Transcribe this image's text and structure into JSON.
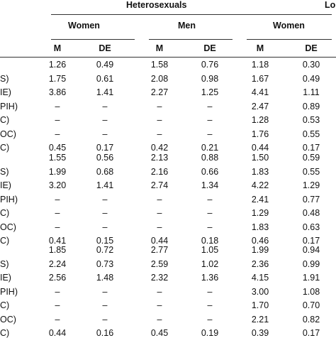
{
  "table": {
    "group_headers": [
      "Heterosexuals",
      "Lo"
    ],
    "sub_headers": [
      "Women",
      "Men",
      "Women"
    ],
    "col_headers": [
      "M",
      "DE",
      "M",
      "DE",
      "M",
      "DE"
    ],
    "sections": [
      {
        "rows": [
          {
            "label": "",
            "values": [
              "1.26",
              "0.49",
              "1.58",
              "0.76",
              "1.18",
              "0.30"
            ]
          },
          {
            "label": "S)",
            "values": [
              "1.75",
              "0.61",
              "2.08",
              "0.98",
              "1.67",
              "0.49"
            ]
          },
          {
            "label": "IE)",
            "values": [
              "3.86",
              "1.41",
              "2.27",
              "1.25",
              "4.41",
              "1.11"
            ]
          },
          {
            "label": "PIH)",
            "values": [
              "–",
              "–",
              "–",
              "–",
              "2.47",
              "0.89"
            ]
          },
          {
            "label": "C)",
            "values": [
              "–",
              "–",
              "–",
              "–",
              "1.28",
              "0.53"
            ]
          },
          {
            "label": "OC)",
            "values": [
              "–",
              "–",
              "–",
              "–",
              "1.76",
              "0.55"
            ]
          },
          {
            "label": "C)",
            "values": [
              "0.45",
              "0.17",
              "0.42",
              "0.21",
              "0.44",
              "0.17"
            ]
          }
        ]
      },
      {
        "rows": [
          {
            "label": "",
            "values": [
              "1.55",
              "0.56",
              "2.13",
              "0.88",
              "1.50",
              "0.59"
            ]
          },
          {
            "label": "S)",
            "values": [
              "1.99",
              "0.68",
              "2.16",
              "0.66",
              "1.83",
              "0.55"
            ]
          },
          {
            "label": "IE)",
            "values": [
              "3.20",
              "1.41",
              "2.74",
              "1.34",
              "4.22",
              "1.29"
            ]
          },
          {
            "label": "PIH)",
            "values": [
              "–",
              "–",
              "–",
              "–",
              "2.41",
              "0.77"
            ]
          },
          {
            "label": "C)",
            "values": [
              "–",
              "–",
              "–",
              "–",
              "1.29",
              "0.48"
            ]
          },
          {
            "label": "OC)",
            "values": [
              "–",
              "–",
              "–",
              "–",
              "1.83",
              "0.63"
            ]
          },
          {
            "label": "C)",
            "values": [
              "0.41",
              "0.15",
              "0.44",
              "0.18",
              "0.46",
              "0.17"
            ]
          }
        ]
      },
      {
        "rows": [
          {
            "label": "",
            "values": [
              "1.85",
              "0.72",
              "2.77",
              "1.05",
              "1.99",
              "0.94"
            ]
          },
          {
            "label": "S)",
            "values": [
              "2.24",
              "0.73",
              "2.59",
              "1.02",
              "2.36",
              "0.99"
            ]
          },
          {
            "label": "IE)",
            "values": [
              "2.56",
              "1.48",
              "2.32",
              "1.36",
              "4.15",
              "1.91"
            ]
          },
          {
            "label": "PIH)",
            "values": [
              "–",
              "–",
              "–",
              "–",
              "3.00",
              "1.08"
            ]
          },
          {
            "label": "C)",
            "values": [
              "–",
              "–",
              "–",
              "–",
              "1.70",
              "0.70"
            ]
          },
          {
            "label": "OC)",
            "values": [
              "–",
              "–",
              "–",
              "–",
              "2.21",
              "0.82"
            ]
          },
          {
            "label": "C)",
            "values": [
              "0.44",
              "0.16",
              "0.45",
              "0.19",
              "0.39",
              "0.17"
            ]
          }
        ]
      }
    ]
  }
}
